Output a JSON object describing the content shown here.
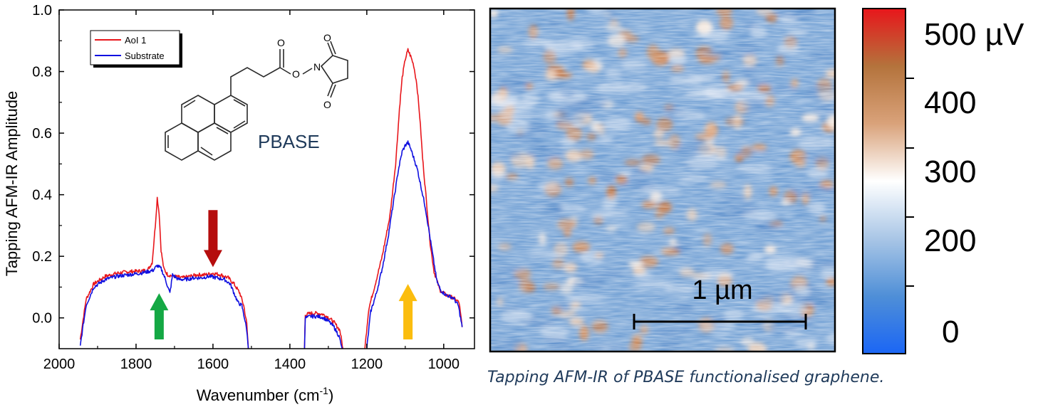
{
  "chart_data": [
    {
      "type": "line",
      "xlabel": "Wavenumber (cm",
      "xlabel_sup": "-1",
      "xlabel_suffix": ")",
      "ylabel": "Tapping AFM-IR Amplitude",
      "xlim": [
        2000,
        920
      ],
      "ylim": [
        -0.1,
        1.0
      ],
      "x_ticks": [
        2000,
        1800,
        1600,
        1400,
        1200,
        1000
      ],
      "y_ticks": [
        0.0,
        0.2,
        0.4,
        0.6,
        0.8,
        1.0
      ],
      "y_tick_labels": [
        "0.0",
        "0.2",
        "0.4",
        "0.6",
        "0.8",
        "1.0"
      ],
      "legend": {
        "placement": "top-left",
        "entries": [
          "AoI 1",
          "Substrate"
        ]
      },
      "series": [
        {
          "name": "AoI 1",
          "color": "#e8161b",
          "segments": [
            [
              [
                1945,
                -0.07
              ],
              [
                1930,
                0.06
              ],
              [
                1910,
                0.11
              ],
              [
                1880,
                0.135
              ],
              [
                1850,
                0.145
              ],
              [
                1820,
                0.15
              ],
              [
                1790,
                0.152
              ],
              [
                1770,
                0.155
              ],
              [
                1758,
                0.18
              ],
              [
                1750,
                0.3
              ],
              [
                1745,
                0.39
              ],
              [
                1740,
                0.34
              ],
              [
                1735,
                0.22
              ],
              [
                1728,
                0.16
              ],
              [
                1718,
                0.14
              ],
              [
                1700,
                0.135
              ],
              [
                1680,
                0.13
              ],
              [
                1660,
                0.135
              ],
              [
                1640,
                0.14
              ],
              [
                1620,
                0.14
              ],
              [
                1600,
                0.145
              ],
              [
                1580,
                0.14
              ],
              [
                1560,
                0.13
              ],
              [
                1545,
                0.11
              ],
              [
                1530,
                0.08
              ],
              [
                1520,
                0.04
              ],
              [
                1512,
                -0.02
              ],
              [
                1508,
                -0.1
              ]
            ],
            [
              [
                1362,
                -0.1
              ],
              [
                1360,
                0.01
              ],
              [
                1345,
                0.015
              ],
              [
                1330,
                0.015
              ],
              [
                1315,
                0.012
              ],
              [
                1300,
                0.002
              ],
              [
                1285,
                -0.015
              ],
              [
                1270,
                -0.04
              ],
              [
                1262,
                -0.1
              ]
            ],
            [
              [
                1205,
                -0.1
              ],
              [
                1195,
                0.03
              ],
              [
                1180,
                0.1
              ],
              [
                1160,
                0.2
              ],
              [
                1140,
                0.33
              ],
              [
                1125,
                0.5
              ],
              [
                1115,
                0.68
              ],
              [
                1108,
                0.78
              ],
              [
                1100,
                0.84
              ],
              [
                1093,
                0.87
              ],
              [
                1086,
                0.85
              ],
              [
                1078,
                0.82
              ],
              [
                1070,
                0.76
              ],
              [
                1062,
                0.65
              ],
              [
                1055,
                0.52
              ],
              [
                1045,
                0.38
              ],
              [
                1035,
                0.24
              ],
              [
                1025,
                0.15
              ],
              [
                1010,
                0.09
              ],
              [
                995,
                0.075
              ],
              [
                975,
                0.065
              ],
              [
                960,
                0.05
              ],
              [
                952,
                -0.03
              ]
            ]
          ]
        },
        {
          "name": "Substrate",
          "color": "#1010e0",
          "segments": [
            [
              [
                1945,
                -0.09
              ],
              [
                1930,
                0.04
              ],
              [
                1910,
                0.1
              ],
              [
                1880,
                0.125
              ],
              [
                1850,
                0.135
              ],
              [
                1820,
                0.14
              ],
              [
                1790,
                0.145
              ],
              [
                1770,
                0.15
              ],
              [
                1755,
                0.155
              ],
              [
                1745,
                0.17
              ],
              [
                1735,
                0.16
              ],
              [
                1725,
                0.13
              ],
              [
                1712,
                0.08
              ],
              [
                1705,
                0.14
              ],
              [
                1690,
                0.125
              ],
              [
                1670,
                0.125
              ],
              [
                1650,
                0.13
              ],
              [
                1630,
                0.13
              ],
              [
                1610,
                0.135
              ],
              [
                1590,
                0.13
              ],
              [
                1570,
                0.125
              ],
              [
                1555,
                0.11
              ],
              [
                1545,
                0.08
              ],
              [
                1535,
                0.05
              ],
              [
                1525,
                0.04
              ],
              [
                1518,
                0.0
              ],
              [
                1512,
                -0.04
              ],
              [
                1508,
                -0.1
              ]
            ],
            [
              [
                1362,
                -0.1
              ],
              [
                1360,
                0.0
              ],
              [
                1345,
                0.005
              ],
              [
                1330,
                0.005
              ],
              [
                1315,
                0.002
              ],
              [
                1300,
                -0.01
              ],
              [
                1285,
                -0.03
              ],
              [
                1272,
                -0.06
              ],
              [
                1264,
                -0.1
              ]
            ],
            [
              [
                1200,
                -0.1
              ],
              [
                1190,
                0.02
              ],
              [
                1175,
                0.08
              ],
              [
                1160,
                0.16
              ],
              [
                1145,
                0.26
              ],
              [
                1130,
                0.38
              ],
              [
                1118,
                0.48
              ],
              [
                1108,
                0.54
              ],
              [
                1100,
                0.56
              ],
              [
                1093,
                0.57
              ],
              [
                1086,
                0.55
              ],
              [
                1078,
                0.52
              ],
              [
                1068,
                0.48
              ],
              [
                1058,
                0.42
              ],
              [
                1048,
                0.36
              ],
              [
                1038,
                0.28
              ],
              [
                1028,
                0.2
              ],
              [
                1018,
                0.12
              ],
              [
                1008,
                0.09
              ],
              [
                995,
                0.075
              ],
              [
                975,
                0.065
              ],
              [
                962,
                0.04
              ],
              [
                952,
                -0.03
              ]
            ]
          ]
        }
      ],
      "annotations": [
        {
          "kind": "arrow",
          "direction": "up",
          "color": "#14a844",
          "x": 1740,
          "y_tip": 0.08,
          "y_tail": -0.07
        },
        {
          "kind": "arrow",
          "direction": "down",
          "color": "#b50d0d",
          "x": 1600,
          "y_tip": 0.165,
          "y_tail": 0.35
        },
        {
          "kind": "arrow",
          "direction": "up",
          "color": "#fbbd0e",
          "x": 1093,
          "y_tip": 0.11,
          "y_tail": -0.07
        }
      ],
      "molecule_label": "PBASE",
      "molecule_label_color": "#1f3a5a"
    },
    {
      "type": "heatmap",
      "scale_bar_label": "1 µm",
      "colorbar": {
        "tick_labels": [
          "500 µV",
          "400",
          "300",
          "200",
          "0"
        ],
        "stops": [
          "#1b66f5",
          "#4f8fd7",
          "#a9c6e6",
          "#ffffff",
          "#d9a27a",
          "#b4733c",
          "#e8161b"
        ]
      }
    }
  ],
  "caption": "Tapping AFM-IR of PBASE functionalised graphene."
}
